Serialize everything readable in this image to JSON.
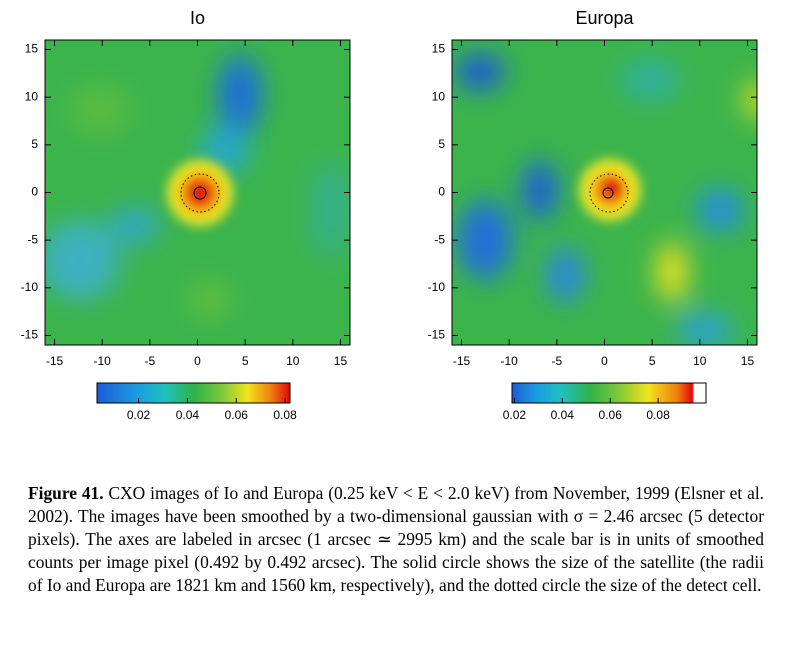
{
  "panels": [
    {
      "title": "Io",
      "xlim": [
        -16,
        16
      ],
      "ylim": [
        -16,
        16
      ],
      "xticks": [
        -15,
        -10,
        -5,
        0,
        5,
        10,
        15
      ],
      "yticks": [
        15,
        10,
        5,
        0,
        -5,
        -10,
        -15
      ],
      "colorbar": {
        "lim": [
          0.003,
          0.082
        ],
        "ticks": [
          0.02,
          0.04,
          0.06,
          0.08
        ]
      }
    },
    {
      "title": "Europa",
      "xlim": [
        -16,
        16
      ],
      "ylim": [
        -16,
        16
      ],
      "xticks": [
        -15,
        -10,
        -5,
        0,
        5,
        10,
        15
      ],
      "yticks": [
        15,
        10,
        5,
        0,
        -5,
        -10,
        -15
      ],
      "colorbar": {
        "lim": [
          0.019,
          0.1
        ],
        "ticks": [
          0.02,
          0.04,
          0.06,
          0.08
        ]
      }
    }
  ],
  "caption": {
    "label": "Figure 41.",
    "text": "CXO images of Io and Europa (0.25 keV < E < 2.0 keV) from November, 1999 (Elsner et al. 2002). The images have been smoothed by a two-dimensional gaussian with σ = 2.46 arcsec (5 detector pixels). The axes are labeled in arcsec (1 arcsec ≃ 2995 km) and the scale bar is in units of smoothed counts per image pixel (0.492 by 0.492 arcsec). The solid circle shows the size of the satellite (the radii of Io and Europa are 1821 km and 1560 km, respectively), and the dotted circle the size of the detect cell."
  }
}
